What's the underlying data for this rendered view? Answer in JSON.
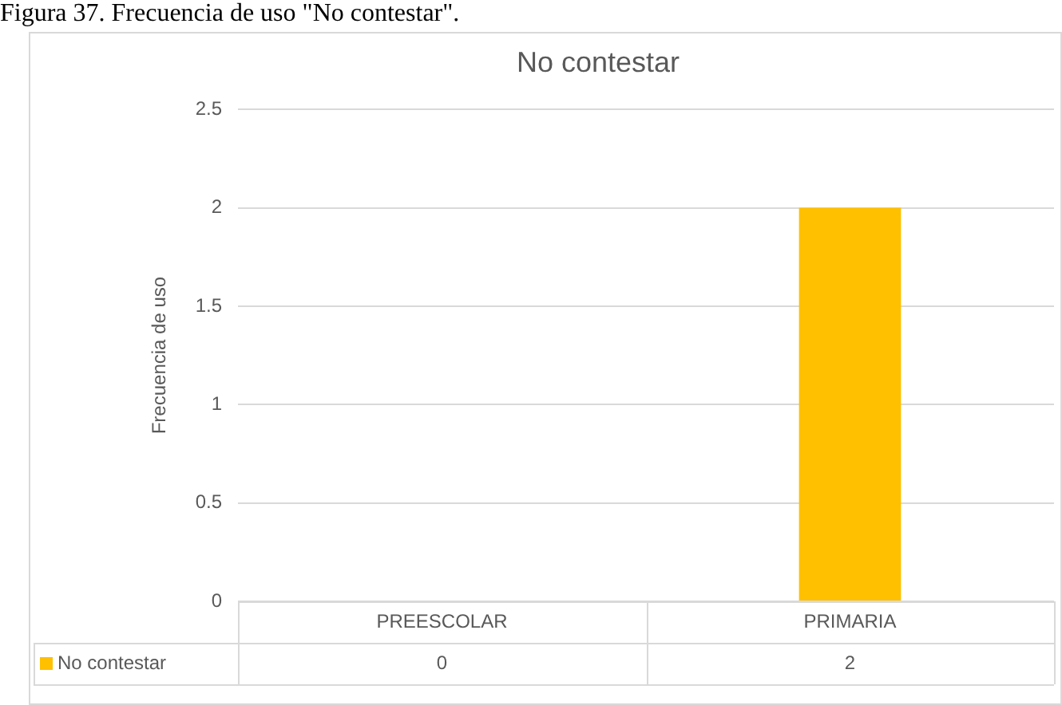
{
  "chart_data": {
    "type": "bar",
    "title": "No contestar",
    "annotations": [
      "Figura 37. Frecuencia de uso \"No contestar\"."
    ],
    "ylabel": "Frecuencia de uso",
    "categories": [
      "PREESCOLAR",
      "PRIMARIA"
    ],
    "series": [
      {
        "name": "No contestar",
        "color": "#ffc000",
        "values": [
          0,
          2
        ]
      }
    ],
    "ylim": [
      0,
      2.5
    ],
    "yticks": [
      0,
      0.5,
      1,
      1.5,
      2,
      2.5
    ],
    "grid": "y",
    "legend": "bottom",
    "data_labels": true
  }
}
